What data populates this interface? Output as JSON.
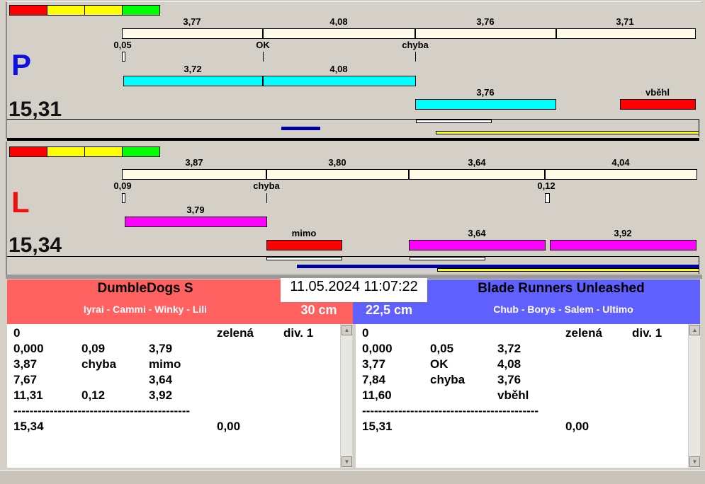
{
  "colors": {
    "red": "#ff0000",
    "yellow": "#ffff00",
    "green": "#00ff00",
    "cyan": "#00ffff",
    "magenta": "#ff00ff",
    "left_team": "#ff6060",
    "right_team": "#6060ff"
  },
  "top": {
    "side": "P",
    "total": "15,31",
    "seg_labels": [
      "3,77",
      "4,08",
      "3,76",
      "3,71"
    ],
    "mid_labels": [
      "0,05",
      "OK",
      "chyba"
    ],
    "run_labels": [
      "3,72",
      "4,08",
      "3,76",
      "vběhl"
    ]
  },
  "bottom": {
    "side": "L",
    "total": "15,34",
    "seg_labels": [
      "3,87",
      "3,80",
      "3,64",
      "4,04"
    ],
    "mid_labels": [
      "0,09",
      "chyba",
      "0,12"
    ],
    "run_labels": [
      "3,79",
      "mimo",
      "3,64",
      "3,92"
    ]
  },
  "datetime": "11.05.2024 11:07:22",
  "left_team": {
    "name": "DumbleDogs S",
    "members": "Iyrai - Cammi - Winky - Lili",
    "height": "30 cm"
  },
  "right_team": {
    "name": "Blade Runners Unleashed",
    "members": "Chub - Borys - Salem - Ultimo",
    "height": "22,5 cm"
  },
  "left_list": [
    [
      "0",
      "",
      "",
      "zelená",
      "div. 1"
    ],
    [
      "0,000",
      "0,09",
      "3,79",
      "",
      ""
    ],
    [
      "3,87",
      "chyba",
      "mimo",
      "",
      ""
    ],
    [
      "7,67",
      "",
      "3,64",
      "",
      ""
    ],
    [
      "11,31",
      "0,12",
      "3,92",
      "",
      ""
    ],
    [
      "--------------------------------------------",
      "",
      "",
      "",
      ""
    ],
    [
      "15,34",
      "",
      "",
      "0,00",
      ""
    ]
  ],
  "right_list": [
    [
      "0",
      "",
      "",
      "zelená",
      "div. 1"
    ],
    [
      "0,000",
      "0,05",
      "3,72",
      "",
      ""
    ],
    [
      "3,77",
      "OK",
      "4,08",
      "",
      ""
    ],
    [
      "7,84",
      "chyba",
      "3,76",
      "",
      ""
    ],
    [
      "11,60",
      "",
      "vběhl",
      "",
      ""
    ],
    [
      "--------------------------------------------",
      "",
      "",
      "",
      ""
    ],
    [
      "15,31",
      "",
      "",
      "0,00",
      ""
    ]
  ]
}
